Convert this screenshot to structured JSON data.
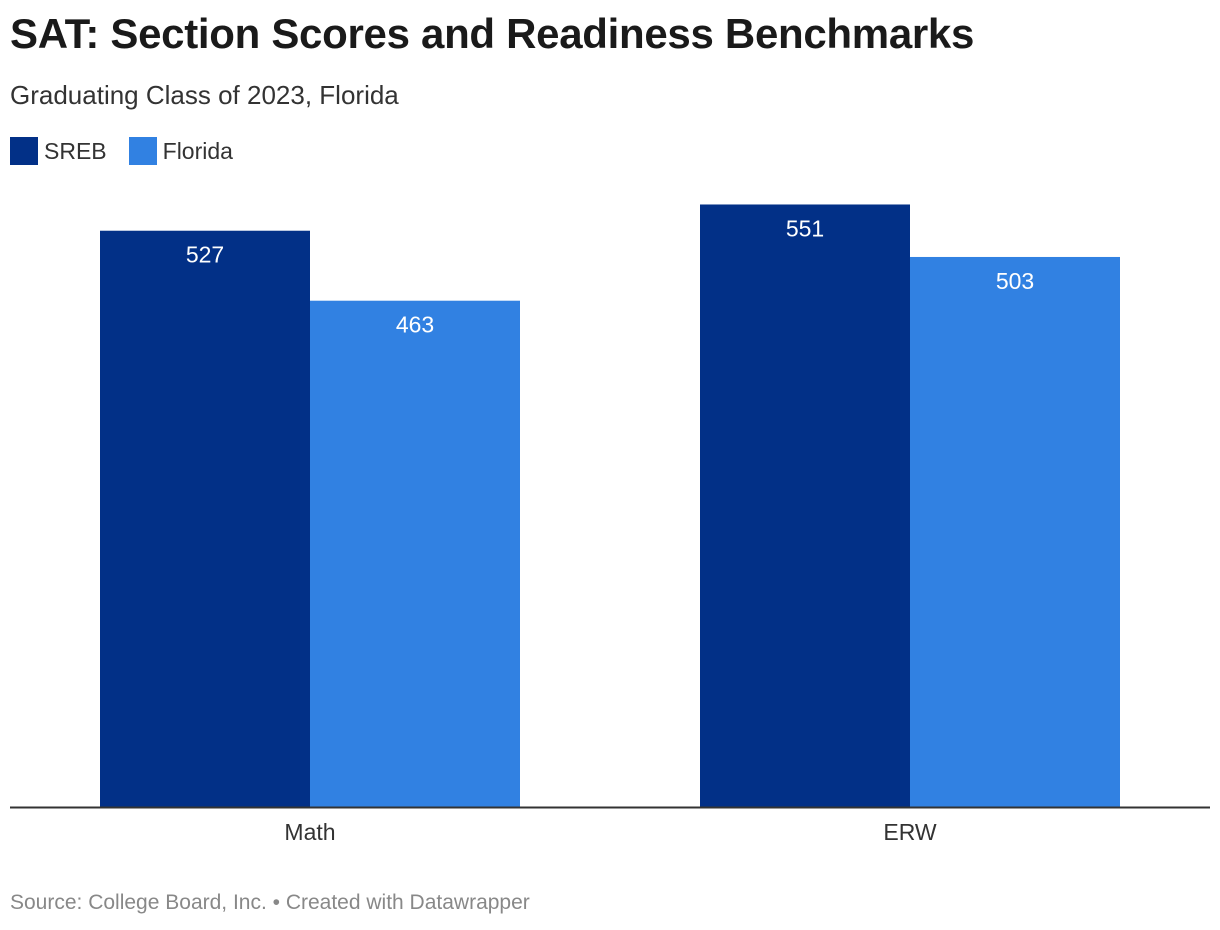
{
  "chart_data": {
    "type": "bar",
    "title": "SAT: Section Scores and Readiness Benchmarks",
    "subtitle": "Graduating Class of 2023, Florida",
    "categories": [
      "Math",
      "ERW"
    ],
    "series": [
      {
        "name": "SREB",
        "color": "#023087",
        "values": [
          527,
          551
        ]
      },
      {
        "name": "Florida",
        "color": "#3181e2",
        "values": [
          463,
          503
        ]
      }
    ],
    "ylim": [
      0,
      600
    ],
    "grid": false,
    "legend_position": "top-left",
    "source": "Source: College Board, Inc. • Created with Datawrapper"
  }
}
